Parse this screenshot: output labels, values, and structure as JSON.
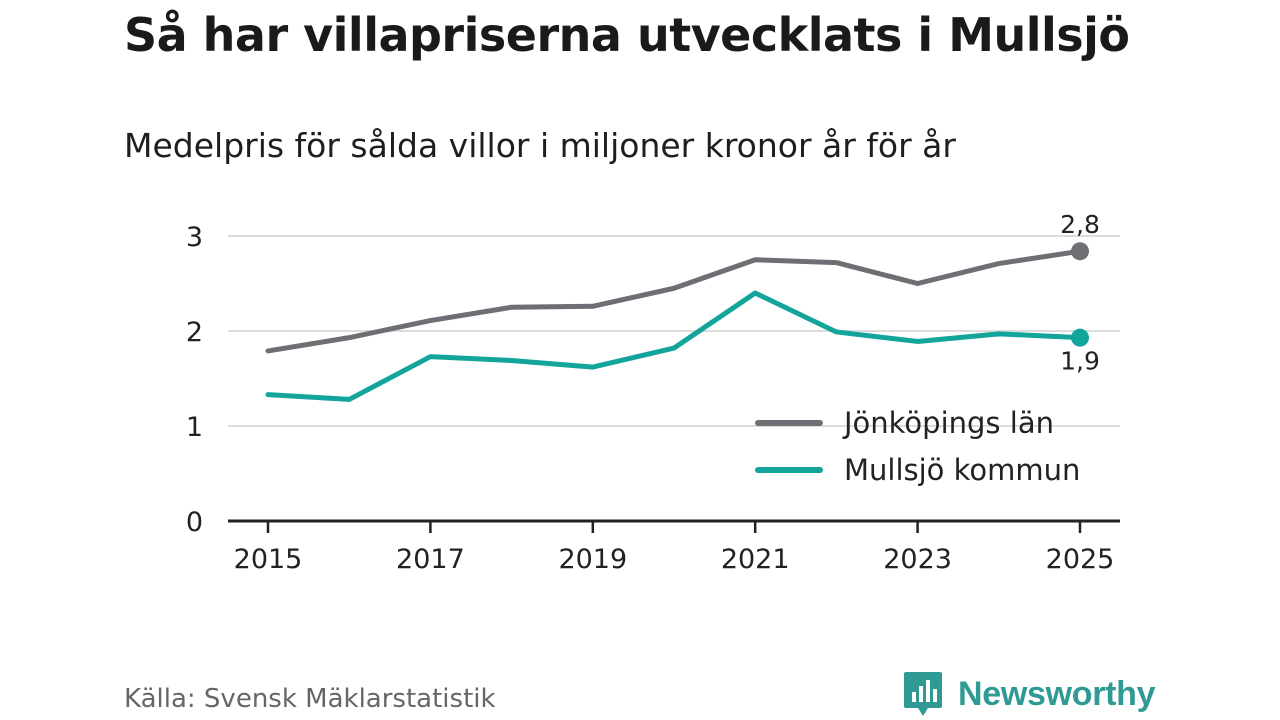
{
  "title": "Så har villapriserna utvecklats i Mullsjö",
  "subtitle": "Medelpris för sålda villor i miljoner kronor år för år",
  "source": "Källa: Svensk Mäklarstatistik",
  "brand": "Newsworthy",
  "colors": {
    "lan": "#6f6e74",
    "kommun": "#13a59c",
    "grid": "#dcdcdc",
    "axis": "#222222",
    "brand": "#2f9a93"
  },
  "chart_data": {
    "type": "line",
    "title": "Så har villapriserna utvecklats i Mullsjö",
    "subtitle": "Medelpris för sålda villor i miljoner kronor år för år",
    "xlabel": "",
    "ylabel": "",
    "x": [
      2015,
      2016,
      2017,
      2018,
      2019,
      2020,
      2021,
      2022,
      2023,
      2024,
      2025
    ],
    "x_tick_labels": [
      "2015",
      "2017",
      "2019",
      "2021",
      "2023",
      "2025"
    ],
    "y_tick_labels": [
      "0",
      "1",
      "2",
      "3"
    ],
    "ylim": [
      0,
      3.0
    ],
    "grid": true,
    "legend_position": "bottom-right",
    "series": [
      {
        "name": "Jönköpings län",
        "color": "#6f6e74",
        "values": [
          1.79,
          1.93,
          2.11,
          2.25,
          2.26,
          2.45,
          2.75,
          2.72,
          2.5,
          2.71,
          2.84
        ],
        "end_label": "2,8"
      },
      {
        "name": "Mullsjö kommun",
        "color": "#13a59c",
        "values": [
          1.33,
          1.28,
          1.73,
          1.69,
          1.62,
          1.82,
          2.4,
          1.99,
          1.89,
          1.97,
          1.93
        ],
        "end_label": "1,9"
      }
    ]
  }
}
